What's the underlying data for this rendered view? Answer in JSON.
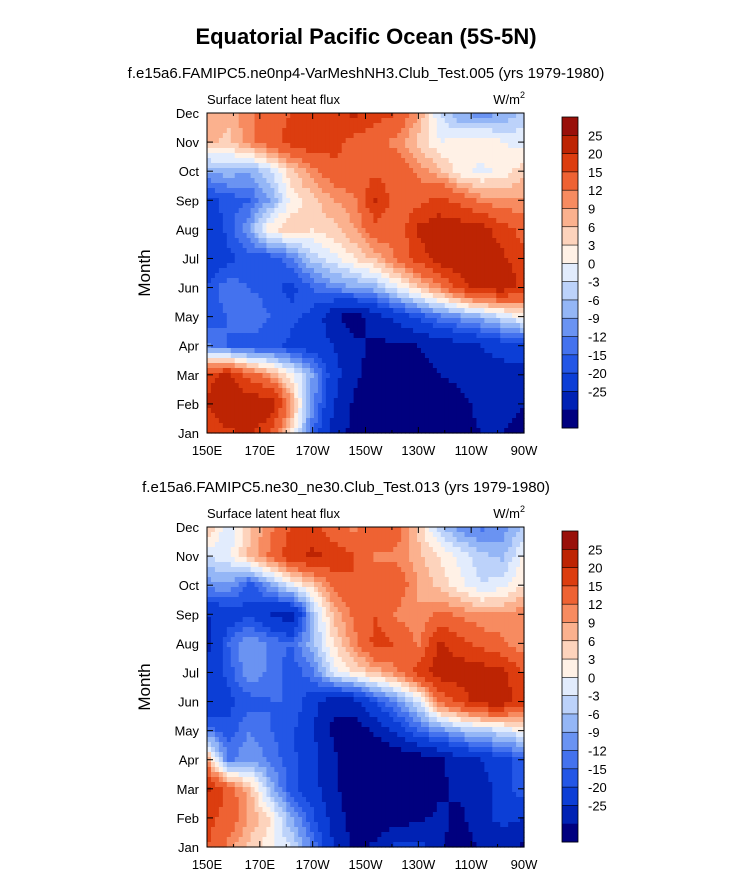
{
  "title": "Equatorial Pacific Ocean (5S-5N)",
  "palette": [
    "#00007f",
    "#0022b4",
    "#0c3ed6",
    "#2356e6",
    "#4472ee",
    "#6a93f2",
    "#94b6f6",
    "#bcd2fa",
    "#e2ecfd",
    "#fff1e6",
    "#fdd3bc",
    "#fbb18e",
    "#f78b60",
    "#ee6233",
    "#dc3d0f",
    "#bd2403",
    "#99100a"
  ],
  "chart_data": [
    {
      "type": "heatmap",
      "subtitle": "f.e15a6.FAMIPC5.ne0np4-VarMeshNH3.Club_Test.005 (yrs 1979-1980)",
      "left_label": "Surface latent heat flux",
      "units_label": "W/m",
      "units_sup": "2",
      "xlabel": "",
      "ylabel": "Month",
      "x_ticks": [
        "150E",
        "170E",
        "170W",
        "150W",
        "130W",
        "110W",
        "90W"
      ],
      "y_ticks": [
        "Jan",
        "Feb",
        "Mar",
        "Apr",
        "May",
        "Jun",
        "Jul",
        "Aug",
        "Sep",
        "Oct",
        "Nov",
        "Dec"
      ],
      "xlim": [
        150,
        270
      ],
      "colorbar_levels": [
        25,
        20,
        15,
        12,
        9,
        6,
        3,
        0,
        -3,
        -6,
        -9,
        -12,
        -15,
        -20,
        -25
      ],
      "field": {
        "x": [
          150,
          158,
          166,
          174,
          182,
          190,
          198,
          206,
          214,
          222,
          230,
          238,
          246,
          254,
          262,
          270
        ],
        "y": [
          1,
          2,
          3,
          4,
          5,
          6,
          7,
          8,
          9,
          10,
          11,
          12
        ],
        "z": [
          [
            22,
            24,
            26,
            20,
            6,
            -12,
            -22,
            -27,
            -28,
            -28,
            -28,
            -27,
            -26,
            -25,
            -25,
            -26
          ],
          [
            25,
            30,
            28,
            30,
            12,
            -8,
            -20,
            -26,
            -28,
            -28,
            -27,
            -27,
            -26,
            -24,
            -24,
            -25
          ],
          [
            24,
            26,
            18,
            12,
            4,
            -6,
            -18,
            -24,
            -27,
            -27,
            -26,
            -25,
            -24,
            -22,
            -22,
            -22
          ],
          [
            -8,
            -12,
            -14,
            -14,
            -16,
            -18,
            -20,
            -24,
            -26,
            -26,
            -25,
            -24,
            -22,
            -20,
            -18,
            -16
          ],
          [
            -14,
            -12,
            -9,
            -12,
            -14,
            -16,
            -24,
            -28,
            -22,
            -18,
            -14,
            -10,
            -7,
            -4,
            0,
            4
          ],
          [
            -14,
            -10,
            -12,
            -14,
            -16,
            -12,
            -8,
            -6,
            -4,
            2,
            8,
            14,
            22,
            28,
            28,
            24
          ],
          [
            -20,
            -16,
            -14,
            -14,
            -10,
            -2,
            2,
            6,
            10,
            16,
            22,
            28,
            30,
            28,
            26,
            22
          ],
          [
            -18,
            -14,
            -6,
            6,
            8,
            6,
            8,
            12,
            18,
            16,
            26,
            28,
            28,
            28,
            22,
            18
          ],
          [
            -16,
            -14,
            -12,
            -6,
            4,
            8,
            12,
            14,
            26,
            16,
            18,
            22,
            18,
            14,
            12,
            12
          ],
          [
            -6,
            -4,
            -6,
            0,
            8,
            14,
            18,
            20,
            18,
            18,
            14,
            10,
            4,
            2,
            4,
            8
          ],
          [
            10,
            8,
            14,
            18,
            22,
            24,
            22,
            18,
            16,
            14,
            8,
            3,
            4,
            6,
            3,
            2
          ],
          [
            12,
            10,
            14,
            18,
            20,
            22,
            24,
            26,
            22,
            20,
            12,
            0,
            -6,
            -8,
            -6,
            -2
          ]
        ]
      }
    },
    {
      "type": "heatmap",
      "subtitle": "f.e15a6.FAMIPC5.ne30_ne30.Club_Test.013 (yrs 1979-1980)",
      "left_label": "Surface latent heat flux",
      "units_label": "W/m",
      "units_sup": "2",
      "xlabel": "",
      "ylabel": "Month",
      "x_ticks": [
        "150E",
        "170E",
        "170W",
        "150W",
        "130W",
        "110W",
        "90W"
      ],
      "y_ticks": [
        "Jan",
        "Feb",
        "Mar",
        "Apr",
        "May",
        "Jun",
        "Jul",
        "Aug",
        "Sep",
        "Oct",
        "Nov",
        "Dec"
      ],
      "xlim": [
        150,
        270
      ],
      "colorbar_levels": [
        25,
        20,
        15,
        12,
        9,
        6,
        3,
        0,
        -3,
        -6,
        -9,
        -12,
        -15,
        -20,
        -25
      ],
      "field": {
        "x": [
          150,
          158,
          166,
          174,
          182,
          190,
          198,
          206,
          214,
          222,
          230,
          238,
          246,
          254,
          262,
          270
        ],
        "y": [
          1,
          2,
          3,
          4,
          5,
          6,
          7,
          8,
          9,
          10,
          11,
          12
        ],
        "z": [
          [
            20,
            14,
            8,
            4,
            0,
            -10,
            -20,
            -26,
            -24,
            -18,
            -18,
            -24,
            -28,
            -24,
            -24,
            -26
          ],
          [
            22,
            18,
            12,
            6,
            -6,
            -14,
            -22,
            -28,
            -28,
            -28,
            -26,
            -24,
            -26,
            -22,
            -18,
            -20
          ],
          [
            26,
            18,
            10,
            -4,
            -14,
            -18,
            -24,
            -28,
            -28,
            -28,
            -28,
            -26,
            -24,
            -22,
            -18,
            -12
          ],
          [
            12,
            -10,
            -6,
            -10,
            -14,
            -18,
            -24,
            -28,
            -30,
            -30,
            -28,
            -26,
            -22,
            -20,
            -16,
            -14
          ],
          [
            -10,
            -14,
            -9,
            -12,
            -14,
            -20,
            -26,
            -28,
            -24,
            -18,
            -12,
            -8,
            -4,
            -2,
            0,
            4
          ],
          [
            -20,
            -16,
            -14,
            -12,
            -12,
            -18,
            -24,
            -22,
            -14,
            -8,
            0,
            16,
            22,
            28,
            28,
            22
          ],
          [
            -18,
            -14,
            -6,
            -10,
            -14,
            -10,
            2,
            6,
            10,
            14,
            22,
            28,
            28,
            28,
            26,
            20
          ],
          [
            -22,
            -12,
            -6,
            -10,
            -12,
            -4,
            6,
            14,
            22,
            20,
            14,
            26,
            22,
            18,
            16,
            12
          ],
          [
            -20,
            -18,
            -16,
            -20,
            -24,
            -4,
            10,
            16,
            20,
            14,
            12,
            16,
            14,
            12,
            12,
            14
          ],
          [
            -8,
            -6,
            -14,
            -6,
            2,
            8,
            16,
            20,
            18,
            18,
            12,
            8,
            4,
            0,
            2,
            6
          ],
          [
            0,
            2,
            10,
            16,
            24,
            26,
            24,
            20,
            14,
            14,
            10,
            6,
            2,
            -2,
            -4,
            4
          ],
          [
            10,
            0,
            8,
            14,
            20,
            22,
            16,
            14,
            20,
            18,
            8,
            -2,
            -8,
            -10,
            -8,
            -2
          ]
        ]
      }
    }
  ]
}
